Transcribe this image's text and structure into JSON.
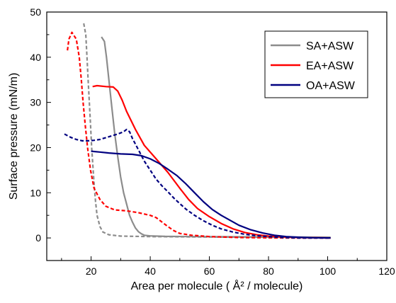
{
  "chart_data": {
    "type": "line",
    "title": "",
    "xlabel": "Area per molecule ( Å² / molecule)",
    "ylabel": "Surface pressure (mN/m)",
    "xlim": [
      5,
      120
    ],
    "ylim": [
      -5,
      50
    ],
    "xticks": [
      20,
      40,
      60,
      80,
      100,
      120
    ],
    "yticks": [
      0,
      10,
      20,
      30,
      40,
      50
    ],
    "legend_position": "top-right",
    "grid": false,
    "series": [
      {
        "name": "SA+ASW",
        "color": "#8c8c8c",
        "in_legend": true,
        "dashed": false,
        "points": [
          [
            23.5,
            44.5
          ],
          [
            24.5,
            43.5
          ],
          [
            25.2,
            40
          ],
          [
            26,
            35
          ],
          [
            27,
            29
          ],
          [
            28,
            23
          ],
          [
            29,
            18
          ],
          [
            30,
            13.5
          ],
          [
            31,
            10
          ],
          [
            32,
            7.5
          ],
          [
            33,
            5
          ],
          [
            34,
            3.5
          ],
          [
            35,
            2.2
          ],
          [
            36,
            1.4
          ],
          [
            37,
            0.9
          ],
          [
            38,
            0.6
          ],
          [
            40,
            0.45
          ],
          [
            45,
            0.35
          ],
          [
            55,
            0.3
          ],
          [
            70,
            0.25
          ],
          [
            85,
            0.2
          ],
          [
            101,
            0.15
          ]
        ]
      },
      {
        "name": "",
        "color": "#8c8c8c",
        "in_legend": false,
        "dashed": true,
        "points": [
          [
            17.5,
            47.5
          ],
          [
            18.2,
            45
          ],
          [
            18.6,
            40
          ],
          [
            19,
            35
          ],
          [
            19.4,
            30
          ],
          [
            19.8,
            25
          ],
          [
            20.2,
            20
          ],
          [
            20.6,
            16
          ],
          [
            21,
            12
          ],
          [
            21.5,
            8
          ],
          [
            22,
            5
          ],
          [
            23,
            2.5
          ],
          [
            24,
            1.3
          ],
          [
            26,
            0.7
          ],
          [
            30,
            0.4
          ],
          [
            40,
            0.3
          ],
          [
            60,
            0.2
          ],
          [
            80,
            0.15
          ],
          [
            100,
            0.1
          ]
        ]
      },
      {
        "name": "EA+ASW",
        "color": "#ff0000",
        "in_legend": true,
        "dashed": false,
        "points": [
          [
            20.5,
            33.5
          ],
          [
            22,
            33.7
          ],
          [
            25,
            33.5
          ],
          [
            27.5,
            33.4
          ],
          [
            29,
            32.5
          ],
          [
            30.5,
            30.5
          ],
          [
            32,
            28
          ],
          [
            35,
            24
          ],
          [
            38,
            20.5
          ],
          [
            42,
            17.5
          ],
          [
            46,
            14.5
          ],
          [
            50,
            11
          ],
          [
            53,
            8.5
          ],
          [
            56,
            6.5
          ],
          [
            60,
            4.7
          ],
          [
            64,
            3.2
          ],
          [
            68,
            2
          ],
          [
            72,
            1.2
          ],
          [
            76,
            0.7
          ],
          [
            80,
            0.4
          ],
          [
            85,
            0.2
          ],
          [
            90,
            0.1
          ],
          [
            101,
            0
          ]
        ]
      },
      {
        "name": "",
        "color": "#ff0000",
        "in_legend": false,
        "dashed": true,
        "points": [
          [
            12,
            41.5
          ],
          [
            12.5,
            44
          ],
          [
            13.5,
            45.5
          ],
          [
            15,
            44
          ],
          [
            16,
            40
          ],
          [
            16.7,
            35
          ],
          [
            17.3,
            30
          ],
          [
            18,
            25
          ],
          [
            18.8,
            20
          ],
          [
            19.8,
            15
          ],
          [
            21,
            11
          ],
          [
            23,
            8.5
          ],
          [
            25,
            7
          ],
          [
            28,
            6.2
          ],
          [
            32,
            6
          ],
          [
            36,
            5.6
          ],
          [
            40,
            5
          ],
          [
            42,
            4.5
          ],
          [
            44,
            3.5
          ],
          [
            46,
            2.5
          ],
          [
            48,
            1.6
          ],
          [
            50,
            1
          ],
          [
            54,
            0.6
          ],
          [
            60,
            0.3
          ],
          [
            70,
            0.1
          ],
          [
            85,
            0
          ],
          [
            100,
            0
          ]
        ]
      },
      {
        "name": "OA+ASW",
        "color": "#000080",
        "in_legend": true,
        "dashed": false,
        "points": [
          [
            20,
            19.2
          ],
          [
            23,
            19
          ],
          [
            26,
            18.8
          ],
          [
            30,
            18.6
          ],
          [
            34,
            18.5
          ],
          [
            37,
            18.2
          ],
          [
            40,
            17.5
          ],
          [
            43,
            16.5
          ],
          [
            46,
            15.2
          ],
          [
            49,
            13.8
          ],
          [
            52,
            12
          ],
          [
            55,
            10
          ],
          [
            58,
            8
          ],
          [
            61,
            6.3
          ],
          [
            64,
            5
          ],
          [
            67,
            3.9
          ],
          [
            70,
            2.8
          ],
          [
            74,
            1.8
          ],
          [
            78,
            1.1
          ],
          [
            82,
            0.6
          ],
          [
            86,
            0.3
          ],
          [
            90,
            0.15
          ],
          [
            95,
            0.05
          ],
          [
            101,
            0
          ]
        ]
      },
      {
        "name": "",
        "color": "#000080",
        "in_legend": false,
        "dashed": true,
        "points": [
          [
            11,
            23
          ],
          [
            13,
            22.3
          ],
          [
            15,
            21.8
          ],
          [
            17,
            21.5
          ],
          [
            19,
            21.5
          ],
          [
            21,
            21.6
          ],
          [
            23,
            21.8
          ],
          [
            25,
            22.2
          ],
          [
            27,
            22.6
          ],
          [
            29,
            23
          ],
          [
            31,
            23.5
          ],
          [
            32,
            24
          ],
          [
            33,
            23.5
          ],
          [
            34,
            22
          ],
          [
            36,
            19.5
          ],
          [
            38,
            17
          ],
          [
            40,
            15
          ],
          [
            42,
            13
          ],
          [
            44,
            11.5
          ],
          [
            46,
            10.2
          ],
          [
            48,
            8.8
          ],
          [
            50,
            7.6
          ],
          [
            52,
            6.4
          ],
          [
            55,
            5
          ],
          [
            58,
            3.8
          ],
          [
            61,
            2.8
          ],
          [
            64,
            2
          ],
          [
            68,
            1.3
          ],
          [
            72,
            0.8
          ],
          [
            76,
            0.5
          ],
          [
            80,
            0.3
          ],
          [
            85,
            0.1
          ],
          [
            90,
            0
          ],
          [
            101,
            0
          ]
        ]
      }
    ]
  }
}
